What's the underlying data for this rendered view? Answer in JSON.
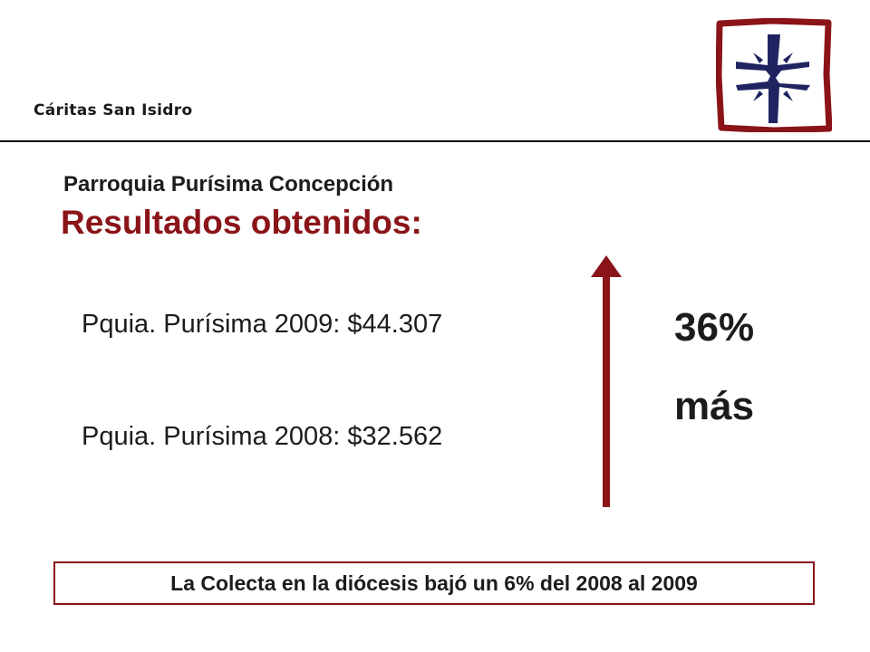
{
  "header": {
    "brand": "Cáritas San Isidro",
    "logo_icon": "caritas-cross-logo-icon",
    "colors": {
      "frame": "#8b1418",
      "cross": "#1f2461"
    }
  },
  "content": {
    "subtitle": "Parroquia Purísima Concepción",
    "title": "Resultados obtenidos:",
    "line_2009": "Pquia. Purísima 2009: $44.307",
    "line_2008": "Pquia. Purísima 2008: $32.562",
    "increase_percent": "36%",
    "increase_word": "más",
    "arrow_icon": "up-arrow-icon",
    "accent_color": "#8b1418"
  },
  "footer": {
    "note": "La Colecta en la diócesis bajó un 6% del 2008 al 2009"
  }
}
